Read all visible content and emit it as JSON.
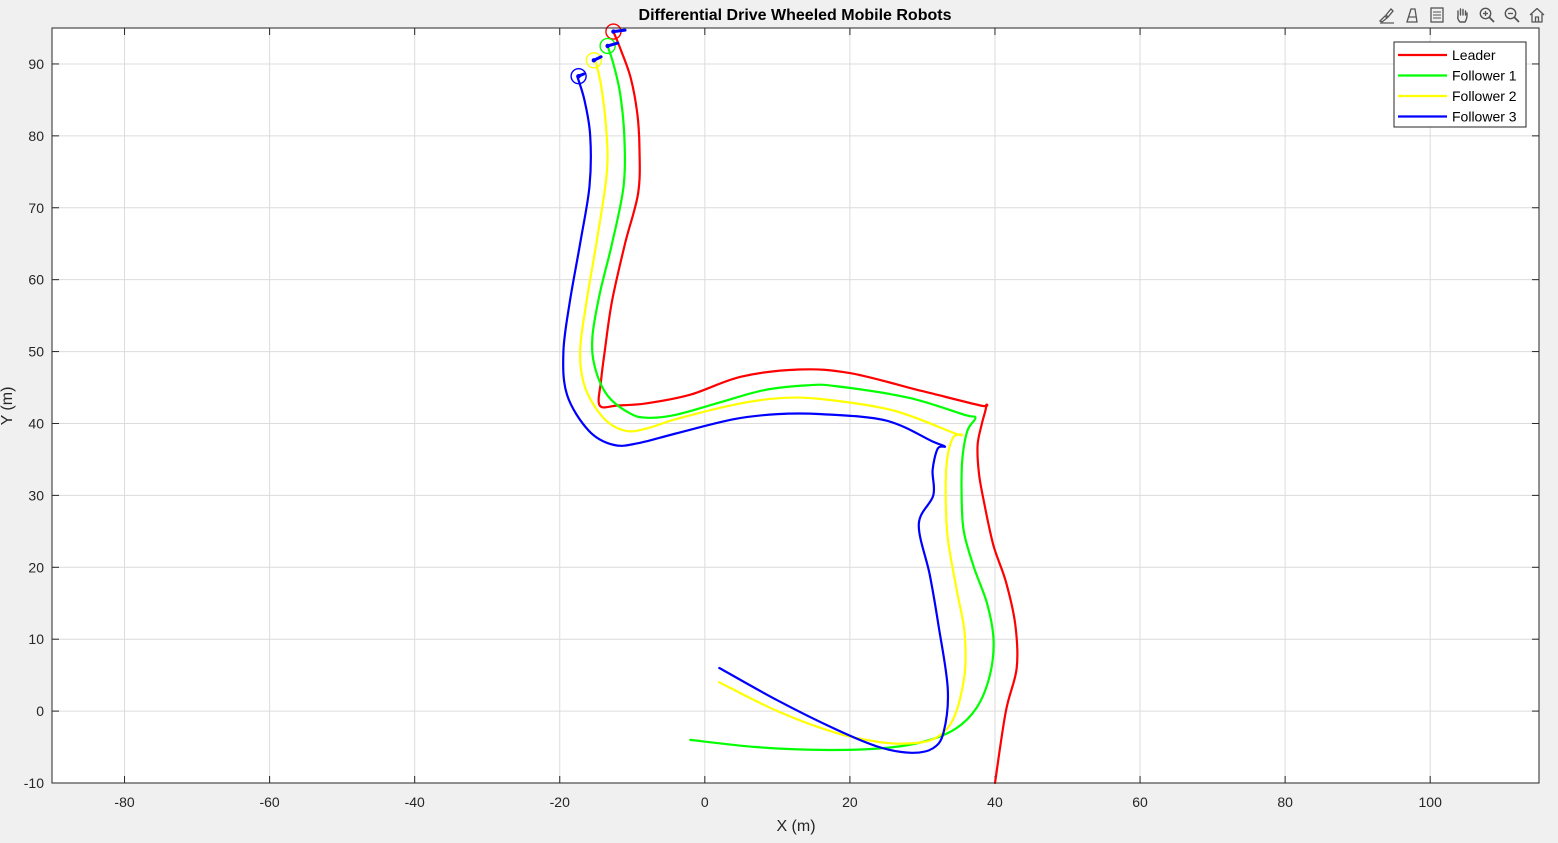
{
  "toolbar": {
    "icons": [
      "brush-icon",
      "data-tip-icon",
      "legend-toggle-icon",
      "pan-icon",
      "zoom-in-icon",
      "zoom-out-icon",
      "home-icon"
    ]
  },
  "colors": {
    "figure_bg": "#f0f0f0",
    "axes_bg": "#ffffff",
    "grid": "#dcdcdc",
    "axis": "#262626"
  },
  "chart_data": {
    "type": "line",
    "title": "Differential Drive Wheeled Mobile Robots",
    "xlabel": "X (m)",
    "ylabel": "Y (m)",
    "xlim": [
      -90,
      115
    ],
    "ylim": [
      -10,
      95
    ],
    "xticks": [
      -80,
      -60,
      -40,
      -20,
      0,
      20,
      40,
      60,
      80,
      100
    ],
    "yticks": [
      -10,
      0,
      10,
      20,
      30,
      40,
      50,
      60,
      70,
      80,
      90
    ],
    "grid": true,
    "legend_location": "top-right",
    "series": [
      {
        "name": "Leader",
        "color": "#ff0000",
        "x": [
          40,
          41.5,
          43,
          42.8,
          41.5,
          39.8,
          38.5,
          37.8,
          37.6,
          38.2,
          38.8,
          38,
          30,
          20,
          13,
          5,
          -2,
          -8,
          -12,
          -14.5,
          -14.3,
          -13.8,
          -12.8,
          -11,
          -9.2,
          -9,
          -9.3,
          -10.2,
          -11.6,
          -12.6
        ],
        "y": [
          -10,
          0,
          6,
          12,
          18,
          23,
          29,
          33,
          37,
          40,
          42.5,
          42.5,
          44.5,
          47,
          47.5,
          46.5,
          44,
          42.8,
          42.5,
          42.5,
          46,
          50,
          57,
          65,
          72,
          78,
          83,
          88,
          92,
          94.5
        ]
      },
      {
        "name": "Follower 1",
        "color": "#00ff00",
        "x": [
          -2,
          7,
          16,
          24,
          30,
          34.5,
          37.5,
          39.3,
          39.8,
          38.9,
          37.1,
          35.7,
          35.4,
          35.5,
          36.2,
          37.3,
          35.8,
          28,
          18,
          14,
          8,
          2,
          -4,
          -8,
          -10.5,
          -13.5,
          -15.2,
          -15.5,
          -14.5,
          -12.8,
          -11.2,
          -11.1,
          -11.7,
          -12.6,
          -13.4
        ],
        "y": [
          -4,
          -5,
          -5.4,
          -5.2,
          -4.3,
          -2.5,
          0.5,
          5,
          10,
          15,
          20,
          25,
          30,
          35,
          39,
          40.8,
          41.2,
          43.6,
          45.2,
          45.3,
          44.6,
          42.9,
          41.2,
          40.8,
          41.5,
          44,
          48,
          52,
          58,
          65,
          73,
          80,
          86,
          90,
          92.5
        ]
      },
      {
        "name": "Follower 2",
        "color": "#ffff00",
        "x": [
          2,
          10,
          18,
          24,
          28,
          31.7,
          34.3,
          35.8,
          35.8,
          34.7,
          33.5,
          33.2,
          33.4,
          34.2,
          35.2,
          34.5,
          26,
          16,
          10,
          4,
          -4,
          -8,
          -11,
          -14,
          -16.5,
          -17.2,
          -16.3,
          -14.8,
          -13.5,
          -13.6,
          -14.3,
          -15.1
        ],
        "y": [
          4,
          0,
          -3,
          -4.3,
          -4.5,
          -3.8,
          -1,
          5,
          11,
          17,
          24,
          30,
          35,
          38,
          38.5,
          38.6,
          41.8,
          43.4,
          43.5,
          42.6,
          40.6,
          39.3,
          39,
          40.8,
          45,
          50,
          57,
          66,
          75,
          81,
          87,
          90.5
        ]
      },
      {
        "name": "Follower 3",
        "color": "#0000ff",
        "x": [
          2,
          10,
          18,
          24,
          28.5,
          31.4,
          32.9,
          33.5,
          32.2,
          31,
          29.5,
          31.5,
          31.4,
          32.1,
          33.1,
          31.4,
          25,
          16,
          10,
          4,
          -4,
          -9,
          -12.5,
          -16,
          -19,
          -19.5,
          -18.6,
          -17.2,
          -15.9,
          -15.8,
          -16.6,
          -17.6
        ],
        "y": [
          6,
          1.5,
          -2.5,
          -5,
          -5.8,
          -5.2,
          -3,
          3,
          12,
          19,
          26,
          30,
          33.5,
          36.5,
          36.8,
          37.5,
          40.4,
          41.3,
          41.3,
          40.6,
          38.6,
          37.3,
          37,
          39,
          44,
          50,
          57,
          65,
          73,
          80,
          85,
          88.3
        ]
      }
    ],
    "markers": [
      {
        "series": "Leader",
        "x": -12.6,
        "y": 94.5,
        "heading_dx": 1.6,
        "heading_dy": 0.2
      },
      {
        "series": "Follower 1",
        "x": -13.4,
        "y": 92.5,
        "heading_dx": 1.4,
        "heading_dy": 0.4
      },
      {
        "series": "Follower 2",
        "x": -15.3,
        "y": 90.5,
        "heading_dx": 1.0,
        "heading_dy": 0.5
      },
      {
        "series": "Follower 3",
        "x": -17.4,
        "y": 88.3,
        "heading_dx": 0.7,
        "heading_dy": 0.3
      }
    ]
  }
}
